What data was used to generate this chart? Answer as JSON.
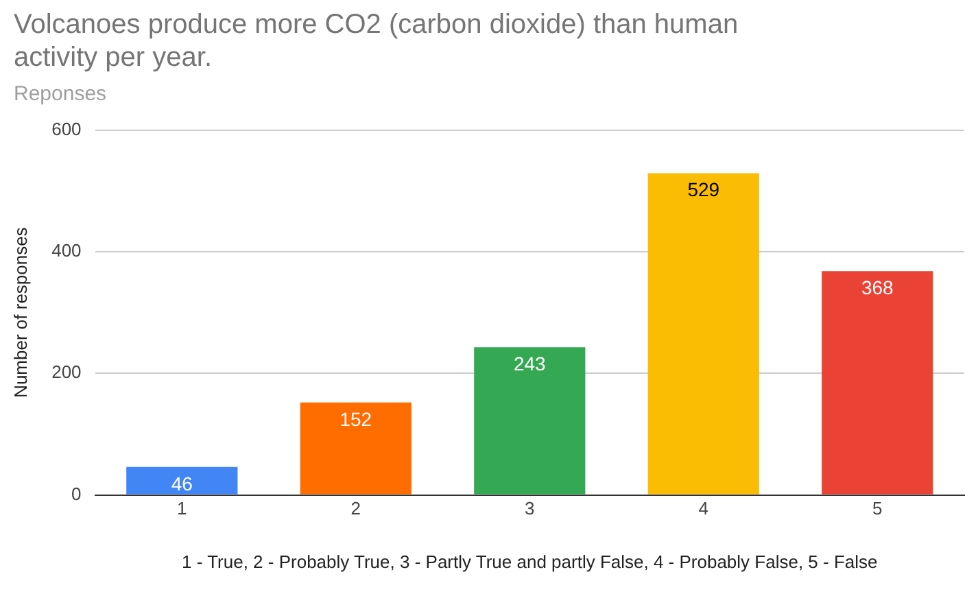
{
  "chart_data": {
    "type": "bar",
    "title": "Volcanoes produce more CO2 (carbon dioxide) than human activity per year.",
    "subtitle": "Reponses",
    "categories": [
      "1",
      "2",
      "3",
      "4",
      "5"
    ],
    "values": [
      46,
      152,
      243,
      529,
      368
    ],
    "colors": [
      "#4285f4",
      "#ff6d01",
      "#34a853",
      "#fbbc04",
      "#ea4335"
    ],
    "xlabel": "1 - True, 2 - Probably True, 3 - Partly True and partly False, 4 - Probably False, 5 - False",
    "ylabel": "Number of responses",
    "ylim": [
      0,
      600
    ],
    "yticks": [
      0,
      200,
      400,
      600
    ],
    "grid": "y",
    "data_labels": true
  }
}
